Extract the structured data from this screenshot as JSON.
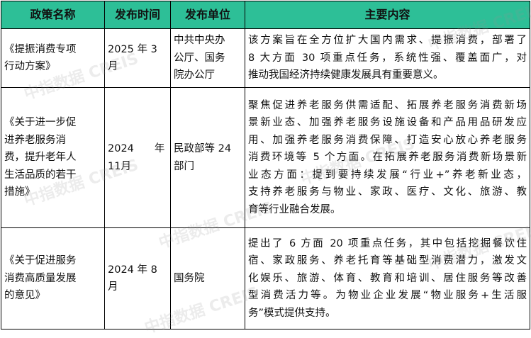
{
  "headers": [
    "政策名称",
    "发布时间",
    "发布单位",
    "主要内容"
  ],
  "header_color": "#2dbf97",
  "watermark": "中指数据 CREIS",
  "rows": [
    {
      "name": [
        "《提振消费专项",
        "行动方案》"
      ],
      "date": [
        "2025 年 3",
        "月"
      ],
      "issuer": [
        "中共中央办",
        "公厅、国务",
        "院办公厅"
      ],
      "content": [
        "该方案旨在全方位扩大国内需求、提振消费，部署了",
        "8 大方面 30 项重点任务，系统性强、覆盖面广，对",
        "推动我国经济持续健康发展具有重要意义。"
      ]
    },
    {
      "name": [
        "《关于进一步促",
        "进养老服务消",
        "费，提升老年人",
        "生活品质的若干",
        "措施》"
      ],
      "date": [
        "2024　　年",
        "11月"
      ],
      "issuer": [
        "民政部等 24",
        "部门"
      ],
      "content": [
        "聚焦促进养老服务供需适配、拓展养老服务消费新场",
        "景新业态、加强养老服务设施设备和产品用品研发应",
        "用、加强养老服务消费保障、打造安心放心养老服务",
        "消费环境等 5 个方面。在拓展养老服务消费新场景新",
        "业态方面：提到要持续发展“行业+”养老新业态，",
        "支持养老服务与物业、家政、医疗、文化、旅游、教",
        "育等行业融合发展。"
      ]
    },
    {
      "name": [
        "《关于促进服务",
        "消费高质量发展",
        "的意见》"
      ],
      "date": [
        "2024 年 8",
        "月"
      ],
      "issuer": [
        "国务院"
      ],
      "content": [
        "提出了 6 方面 20 项重点任务，其中包括挖掘餐饮住",
        "宿、家政服务、养老托育等基础型消费潜力，激发文",
        "化娱乐、旅游、体育、教育和培训、居住服务等改善",
        "型消费活力等。为物业企业发展“物业服务+生活服",
        "务”模式提供支持。"
      ]
    }
  ]
}
